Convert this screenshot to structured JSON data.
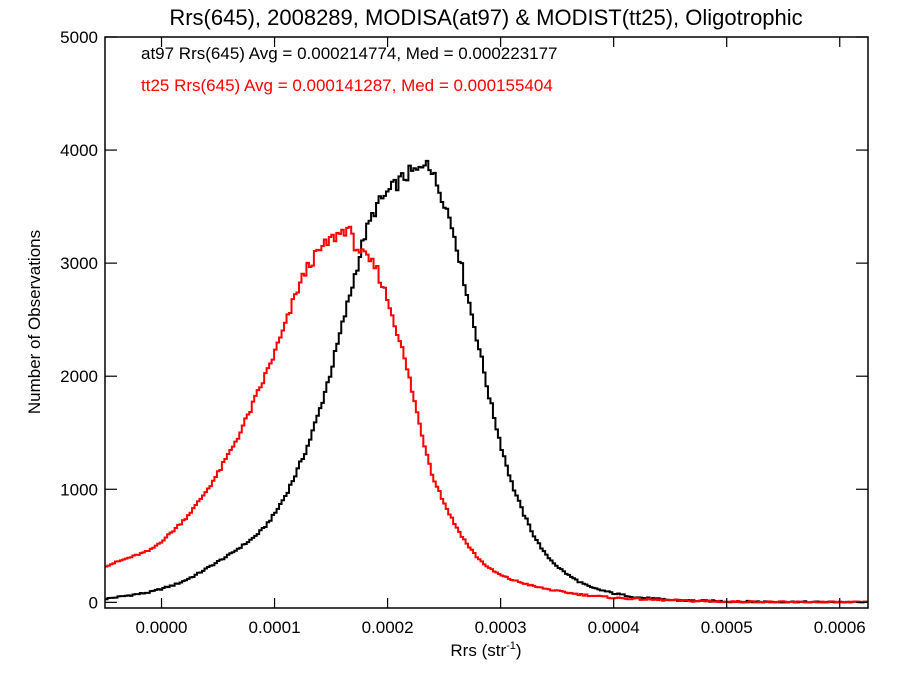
{
  "chart_data": {
    "type": "line",
    "step": true,
    "title": "Rrs(645), 2008289, MODISA(at97) & MODIST(tt25), Oligotrophic",
    "xlabel": "Rrs (str",
    "xlabel_sup": "-1",
    "xlabel_close": ")",
    "ylabel": "Number of Observations",
    "xlim": [
      -5e-05,
      0.000625
    ],
    "ylim": [
      -50,
      5000
    ],
    "xticks": [
      "0.0000",
      "0.0001",
      "0.0002",
      "0.0003",
      "0.0004",
      "0.0005",
      "0.0006"
    ],
    "xtick_values": [
      0,
      0.0001,
      0.0002,
      0.0003,
      0.0004,
      0.0005,
      0.0006
    ],
    "yticks": [
      "0",
      "1000",
      "2000",
      "3000",
      "4000",
      "5000"
    ],
    "ytick_values": [
      0,
      1000,
      2000,
      3000,
      4000,
      5000
    ],
    "annotations": [
      {
        "text": "at97 Rrs(645) Avg = 0.000214774, Med = 0.000223177",
        "color": "#000000"
      },
      {
        "text": "tt25 Rrs(645) Avg = 0.000141287, Med = 0.000155404",
        "color": "#ff0000"
      }
    ],
    "series": [
      {
        "color": "#000000",
        "x": [
          -5e-05,
          -3e-05,
          -1e-05,
          0,
          1e-05,
          2e-05,
          3e-05,
          4e-05,
          5e-05,
          6e-05,
          7e-05,
          8e-05,
          9e-05,
          0.0001,
          0.00011,
          0.00012,
          0.00013,
          0.00014,
          0.00015,
          0.00016,
          0.00017,
          0.00018,
          0.00019,
          0.0002,
          0.00021,
          0.00022,
          0.00023,
          0.000235,
          0.00024,
          0.00025,
          0.00026,
          0.00027,
          0.00028,
          0.00029,
          0.0003,
          0.00031,
          0.00032,
          0.00033,
          0.00034,
          0.00035,
          0.00036,
          0.00037,
          0.00038,
          0.0004,
          0.00042,
          0.00045,
          0.0005,
          0.00055,
          0.0006,
          0.000625
        ],
        "y": [
          30,
          60,
          90,
          120,
          150,
          190,
          240,
          300,
          360,
          420,
          490,
          560,
          650,
          780,
          950,
          1160,
          1400,
          1700,
          2050,
          2450,
          2850,
          3250,
          3500,
          3620,
          3720,
          3800,
          3820,
          3950,
          3780,
          3560,
          3220,
          2750,
          2300,
          1820,
          1400,
          1050,
          790,
          580,
          420,
          320,
          240,
          180,
          130,
          80,
          45,
          20,
          8,
          3,
          1,
          0
        ]
      },
      {
        "color": "#ff0000",
        "x": [
          -5e-05,
          -3e-05,
          -1e-05,
          0,
          1e-05,
          2e-05,
          3e-05,
          4e-05,
          5e-05,
          6e-05,
          7e-05,
          8e-05,
          9e-05,
          0.0001,
          0.00011,
          0.00012,
          0.00013,
          0.00014,
          0.00015,
          0.00016,
          0.000165,
          0.00017,
          0.00018,
          0.00019,
          0.0002,
          0.00021,
          0.00022,
          0.00023,
          0.00024,
          0.00025,
          0.00026,
          0.00027,
          0.00028,
          0.00029,
          0.0003,
          0.00031,
          0.00032,
          0.00033,
          0.00035,
          0.00037,
          0.0004,
          0.00043,
          0.00047,
          0.0005,
          0.00055,
          0.0006,
          0.000625
        ],
        "y": [
          320,
          390,
          460,
          540,
          630,
          730,
          850,
          990,
          1140,
          1320,
          1510,
          1730,
          1960,
          2200,
          2460,
          2760,
          2980,
          3110,
          3210,
          3280,
          3320,
          3180,
          3050,
          2960,
          2680,
          2350,
          1950,
          1500,
          1120,
          880,
          680,
          520,
          390,
          300,
          240,
          200,
          170,
          140,
          100,
          70,
          40,
          25,
          12,
          6,
          2,
          1,
          0
        ]
      }
    ]
  }
}
